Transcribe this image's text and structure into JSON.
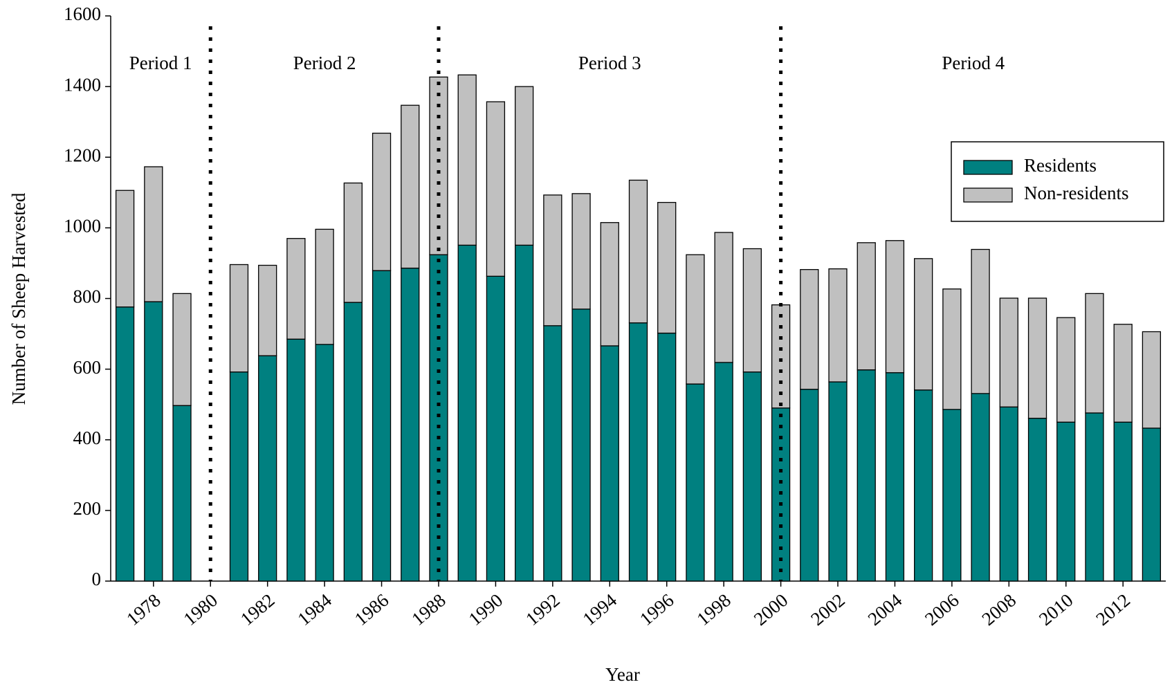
{
  "chart_data": {
    "type": "stacked_bar",
    "x_label": "Year",
    "y_label": "Number of Sheep Harvested",
    "x": [
      1977,
      1978,
      1979,
      1980,
      1981,
      1982,
      1983,
      1984,
      1985,
      1986,
      1987,
      1988,
      1989,
      1990,
      1991,
      1992,
      1993,
      1994,
      1995,
      1996,
      1997,
      1998,
      1999,
      2000,
      2001,
      2002,
      2003,
      2004,
      2005,
      2006,
      2007,
      2008,
      2009,
      2010,
      2011,
      2012,
      2013
    ],
    "series": [
      {
        "name": "Residents",
        "color": "#008080",
        "values": [
          776,
          791,
          497,
          null,
          592,
          638,
          685,
          670,
          789,
          879,
          886,
          924,
          951,
          863,
          951,
          723,
          770,
          666,
          731,
          702,
          558,
          619,
          592,
          490,
          543,
          564,
          598,
          590,
          541,
          486,
          531,
          493,
          461,
          450,
          476,
          450,
          433
        ]
      },
      {
        "name": "Non-residents",
        "color": "#c0c0c0",
        "values": [
          330,
          382,
          317,
          null,
          304,
          256,
          285,
          326,
          338,
          389,
          461,
          503,
          482,
          494,
          449,
          370,
          327,
          349,
          404,
          370,
          366,
          368,
          349,
          292,
          339,
          320,
          360,
          374,
          372,
          341,
          408,
          308,
          340,
          296,
          338,
          277,
          273
        ]
      }
    ],
    "xlim": [
      1976.5,
      2013.5
    ],
    "xticks": [
      1978,
      1980,
      1982,
      1984,
      1986,
      1988,
      1990,
      1992,
      1994,
      1996,
      1998,
      2000,
      2002,
      2004,
      2006,
      2008,
      2010,
      2012
    ],
    "ylim": [
      0,
      1600
    ],
    "yticks": [
      0,
      200,
      400,
      600,
      800,
      1000,
      1200,
      1400,
      1600
    ],
    "period_dividers": [
      1980,
      1988,
      2000
    ],
    "period_labels": [
      "Period 1",
      "Period 2",
      "Period 3",
      "Period 4"
    ],
    "legend": "upper right"
  }
}
